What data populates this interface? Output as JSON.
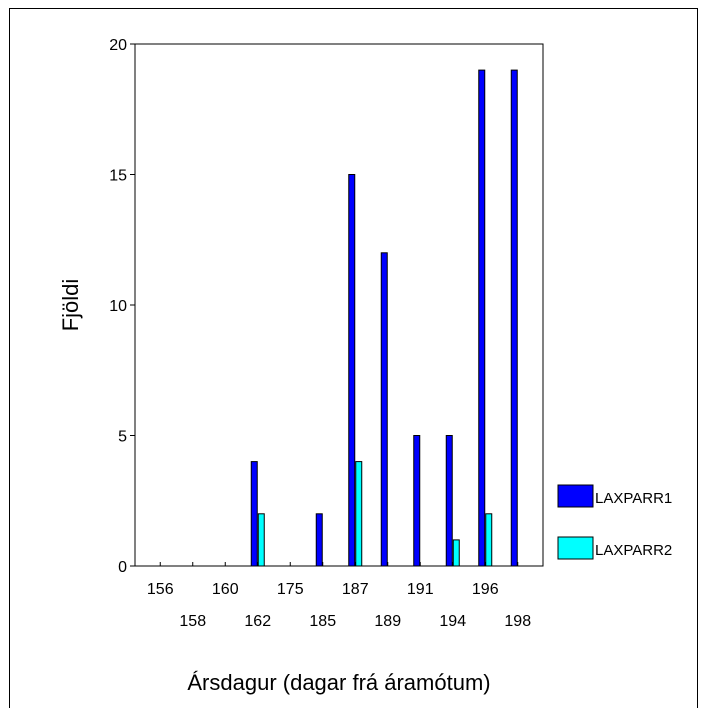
{
  "chart_data": {
    "type": "bar",
    "title": "",
    "xlabel": "Ársdagur (dagar frá áramótum)",
    "ylabel": "Fjöldi",
    "ylim": [
      0,
      20
    ],
    "yticks": [
      0,
      5,
      10,
      15,
      20
    ],
    "grid": false,
    "legend_position": "right",
    "categories": [
      "156",
      "158",
      "160",
      "162",
      "175",
      "185",
      "187",
      "189",
      "191",
      "194",
      "196",
      "198"
    ],
    "series": [
      {
        "name": "LAXPARR1",
        "color": "#0000ff",
        "values": [
          0,
          0,
          0,
          4,
          0,
          2,
          15,
          12,
          5,
          5,
          19,
          19
        ]
      },
      {
        "name": "LAXPARR2",
        "color": "#00ffff",
        "values": [
          0,
          0,
          0,
          2,
          0,
          0,
          4,
          0,
          0,
          1,
          2,
          0
        ]
      }
    ],
    "xtick_labels_row1": [
      "156",
      "160",
      "175",
      "187",
      "191",
      "196"
    ],
    "xtick_labels_row2": [
      "158",
      "162",
      "185",
      "189",
      "194",
      "198"
    ]
  }
}
